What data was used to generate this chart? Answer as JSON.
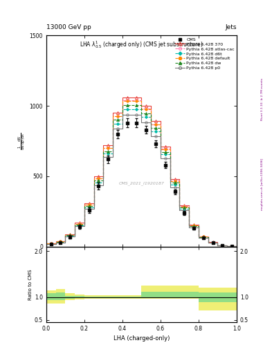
{
  "title_top": "13000 GeV pp",
  "title_right": "Jets",
  "plot_title": "LHA $\\lambda^{1}_{0.5}$ (charged only) (CMS jet substructure)",
  "xlabel": "LHA (charged-only)",
  "ylabel_ratio": "Ratio to CMS",
  "watermark": "CMS_2021_I1920187",
  "rivet_text": "Rivet 3.1.10; ≥ 2.7M events",
  "mcplots_text": "mcplots.cern.ch [arXiv:1306.3436]",
  "x_edges": [
    0.0,
    0.05,
    0.1,
    0.15,
    0.2,
    0.25,
    0.3,
    0.35,
    0.4,
    0.45,
    0.5,
    0.55,
    0.6,
    0.65,
    0.7,
    0.75,
    0.8,
    0.85,
    0.9,
    0.95,
    1.0
  ],
  "cms_values": [
    20,
    30,
    70,
    140,
    260,
    430,
    620,
    800,
    880,
    880,
    830,
    730,
    580,
    390,
    240,
    130,
    65,
    28,
    10,
    4
  ],
  "cms_errors": [
    5,
    6,
    10,
    15,
    20,
    25,
    28,
    30,
    32,
    30,
    28,
    25,
    22,
    18,
    14,
    10,
    6,
    4,
    2,
    1
  ],
  "pythia_370_values": [
    22,
    38,
    88,
    170,
    310,
    500,
    720,
    950,
    1060,
    1060,
    1000,
    890,
    710,
    480,
    295,
    158,
    75,
    32,
    11,
    4
  ],
  "pythia_atlas_cac_values": [
    22,
    36,
    84,
    162,
    298,
    484,
    700,
    925,
    1040,
    1040,
    980,
    870,
    695,
    468,
    287,
    153,
    72,
    30,
    10,
    3
  ],
  "pythia_d6t_values": [
    20,
    32,
    76,
    150,
    278,
    455,
    660,
    875,
    975,
    975,
    920,
    820,
    655,
    440,
    270,
    144,
    68,
    29,
    10,
    3
  ],
  "pythia_default_values": [
    22,
    36,
    84,
    162,
    298,
    484,
    700,
    925,
    1035,
    1035,
    975,
    868,
    690,
    465,
    285,
    152,
    72,
    30,
    10,
    3
  ],
  "pythia_dw_values": [
    21,
    34,
    80,
    156,
    288,
    468,
    678,
    900,
    1005,
    1005,
    948,
    843,
    673,
    453,
    278,
    148,
    70,
    29,
    10,
    3
  ],
  "pythia_p0_values": [
    19,
    30,
    72,
    144,
    268,
    438,
    635,
    840,
    935,
    935,
    882,
    785,
    627,
    421,
    258,
    138,
    65,
    27,
    9,
    3
  ],
  "ratio_yellow_lo": [
    0.85,
    0.85,
    0.93,
    0.95,
    0.96,
    0.96,
    0.96,
    0.96,
    0.96,
    0.96,
    0.96,
    0.96,
    0.96,
    0.96,
    0.96,
    0.96,
    0.7,
    0.7,
    0.7,
    0.7
  ],
  "ratio_yellow_hi": [
    1.15,
    1.18,
    1.08,
    1.05,
    1.04,
    1.04,
    1.04,
    1.04,
    1.04,
    1.04,
    1.25,
    1.25,
    1.25,
    1.25,
    1.25,
    1.25,
    1.2,
    1.2,
    1.2,
    1.2
  ],
  "ratio_green_lo": [
    0.93,
    0.93,
    0.97,
    0.98,
    0.99,
    0.99,
    0.99,
    0.99,
    0.99,
    0.99,
    0.99,
    0.99,
    0.99,
    0.99,
    0.99,
    0.99,
    0.88,
    0.88,
    0.88,
    0.88
  ],
  "ratio_green_hi": [
    1.08,
    1.1,
    1.03,
    1.02,
    1.01,
    1.01,
    1.01,
    1.01,
    1.01,
    1.01,
    1.12,
    1.12,
    1.12,
    1.12,
    1.12,
    1.12,
    1.1,
    1.1,
    1.1,
    1.1
  ],
  "color_370": "#e8413a",
  "color_atlas_cac": "#ff77aa",
  "color_d6t": "#00bbaa",
  "color_default": "#ff8800",
  "color_dw": "#228822",
  "color_p0": "#777777",
  "color_cms": "#111111",
  "ylim_main": [
    0,
    1400
  ],
  "yticks_main": [
    0,
    500,
    1000,
    1500
  ],
  "ylim_ratio": [
    0.45,
    2.1
  ],
  "yticks_ratio": [
    0.5,
    1.0,
    2.0
  ],
  "xlim": [
    0.0,
    1.0
  ]
}
